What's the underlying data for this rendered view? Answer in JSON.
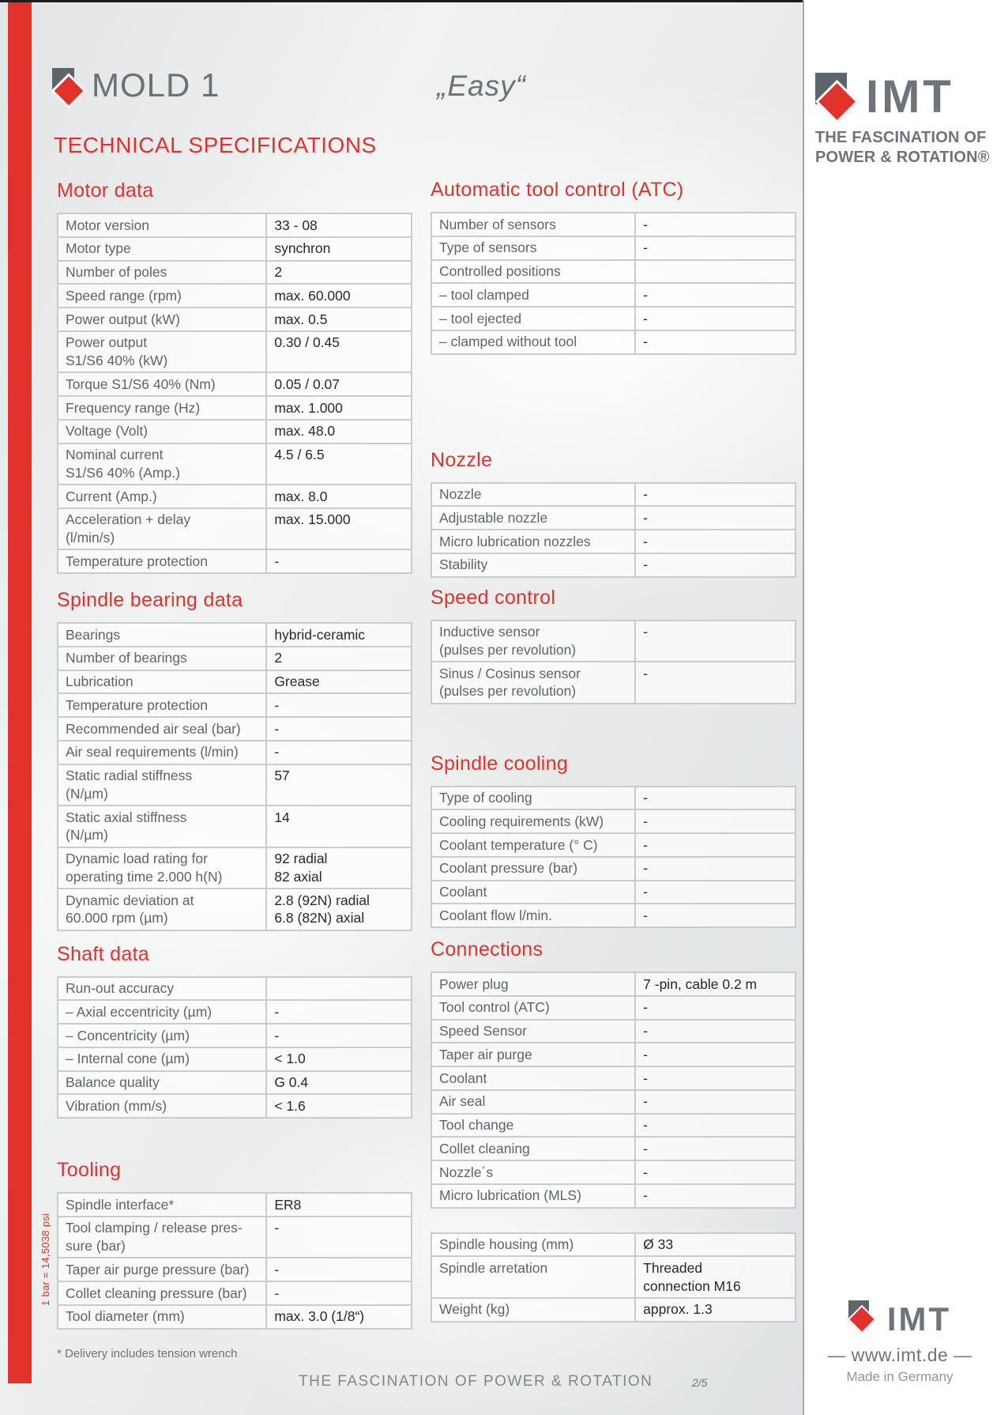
{
  "header": {
    "product": "MOLD 1",
    "model_label": "„Easy“",
    "doc_title": "TECHNICAL SPECIFICATIONS"
  },
  "brand": {
    "name": "IMT",
    "tagline_line1": "THE FASCINATION OF",
    "tagline_line2": "POWER & ROTATION®",
    "website": "— www.imt.de —",
    "made_in": "Made in Germany"
  },
  "footer": {
    "slogan": "THE FASCINATION OF POWER & ROTATION",
    "page_number": "2/5"
  },
  "notes": {
    "footnote": "* Delivery includes tension wrench",
    "pressure_conversion": "1 bar = 14,5038 psi"
  },
  "colors": {
    "accent_red": "#e1322c",
    "label_gray": "#5d6569",
    "value_dark": "#26292c",
    "brand_gray": "#6d747a"
  },
  "sections": {
    "motor_data": {
      "title": "Motor data",
      "rows": [
        [
          "Motor version",
          "33 - 08"
        ],
        [
          "Motor type",
          "synchron"
        ],
        [
          "Number of poles",
          "2"
        ],
        [
          "Speed range (rpm)",
          "max. 60.000"
        ],
        [
          "Power output (kW)",
          "max. 0.5"
        ],
        [
          "Power output\nS1/S6 40% (kW)",
          "0.30 / 0.45"
        ],
        [
          "Torque S1/S6 40% (Nm)",
          "0.05 / 0.07"
        ],
        [
          "Frequency range (Hz)",
          "max. 1.000"
        ],
        [
          "Voltage (Volt)",
          "max. 48.0"
        ],
        [
          "Nominal current\nS1/S6 40% (Amp.)",
          "4.5 / 6.5"
        ],
        [
          "Current (Amp.)",
          "max. 8.0"
        ],
        [
          "Acceleration + delay\n(l/min/s)",
          "max. 15.000"
        ],
        [
          "Temperature protection",
          "-"
        ]
      ]
    },
    "spindle_bearing_data": {
      "title": "Spindle bearing data",
      "rows": [
        [
          "Bearings",
          "hybrid-ceramic"
        ],
        [
          "Number of bearings",
          "2"
        ],
        [
          "Lubrication",
          "Grease"
        ],
        [
          "Temperature protection",
          "-"
        ],
        [
          "Recommended air seal (bar)",
          "-"
        ],
        [
          "Air seal requirements (l/min)",
          "-"
        ],
        [
          "Static radial stiffness\n(N/µm)",
          "57"
        ],
        [
          "Static axial stiffness\n(N/µm)",
          "14"
        ],
        [
          "Dynamic load rating for\noperating time 2.000 h(N)",
          "92 radial\n82 axial"
        ],
        [
          "Dynamic deviation at\n60.000 rpm (µm)",
          "2.8 (92N) radial\n6.8 (82N) axial"
        ]
      ]
    },
    "shaft_data": {
      "title": "Shaft data",
      "rows": [
        [
          "Run-out accuracy",
          ""
        ],
        [
          "– Axial eccentricity (µm)",
          "-"
        ],
        [
          "– Concentricity (µm)",
          "-"
        ],
        [
          "– Internal cone (µm)",
          "< 1.0"
        ],
        [
          "Balance quality",
          "G 0.4"
        ],
        [
          "Vibration (mm/s)",
          "< 1.6"
        ]
      ]
    },
    "tooling": {
      "title": "Tooling",
      "rows": [
        [
          "Spindle interface*",
          "ER8"
        ],
        [
          "Tool clamping / release pres-\nsure (bar)",
          "-"
        ],
        [
          "Taper air purge pressure (bar)",
          "-"
        ],
        [
          "Collet cleaning pressure (bar)",
          "-"
        ],
        [
          "Tool diameter (mm)",
          "max. 3.0 (1/8“)"
        ]
      ]
    },
    "atc": {
      "title": "Automatic tool control (ATC)",
      "rows": [
        [
          "Number of sensors",
          "-"
        ],
        [
          "Type of sensors",
          "-"
        ],
        [
          "Controlled positions",
          ""
        ],
        [
          "– tool clamped",
          "-"
        ],
        [
          "– tool ejected",
          "-"
        ],
        [
          "– clamped without tool",
          "-"
        ]
      ]
    },
    "nozzle": {
      "title": "Nozzle",
      "rows": [
        [
          "Nozzle",
          "-"
        ],
        [
          "Adjustable nozzle",
          "-"
        ],
        [
          "Micro lubrication nozzles",
          "-"
        ],
        [
          "Stability",
          "-"
        ]
      ]
    },
    "speed_control": {
      "title": "Speed control",
      "rows": [
        [
          "Inductive sensor\n(pulses per revolution)",
          "-"
        ],
        [
          "Sinus / Cosinus sensor\n(pulses per revolution)",
          "-"
        ]
      ]
    },
    "spindle_cooling": {
      "title": "Spindle cooling",
      "rows": [
        [
          "Type of cooling",
          "-"
        ],
        [
          "Cooling requirements (kW)",
          "-"
        ],
        [
          "Coolant temperature (° C)",
          "-"
        ],
        [
          "Coolant pressure (bar)",
          "-"
        ],
        [
          "Coolant",
          "-"
        ],
        [
          "Coolant flow l/min.",
          "-"
        ]
      ]
    },
    "connections": {
      "title": "Connections",
      "rows": [
        [
          "Power plug",
          "7 -pin, cable 0.2 m"
        ],
        [
          "Tool control (ATC)",
          "-"
        ],
        [
          "Speed Sensor",
          "-"
        ],
        [
          "Taper air purge",
          "-"
        ],
        [
          "Coolant",
          "-"
        ],
        [
          "Air seal",
          "-"
        ],
        [
          "Tool change",
          "-"
        ],
        [
          "Collet cleaning",
          "-"
        ],
        [
          "Nozzle´s",
          "-"
        ],
        [
          "Micro lubrication (MLS)",
          "-"
        ]
      ]
    },
    "general": {
      "title": "",
      "rows": [
        [
          "Spindle housing (mm)",
          "Ø 33"
        ],
        [
          "Spindle arretation",
          "Threaded\nconnection M16"
        ],
        [
          "Weight (kg)",
          "approx. 1.3"
        ]
      ]
    }
  }
}
